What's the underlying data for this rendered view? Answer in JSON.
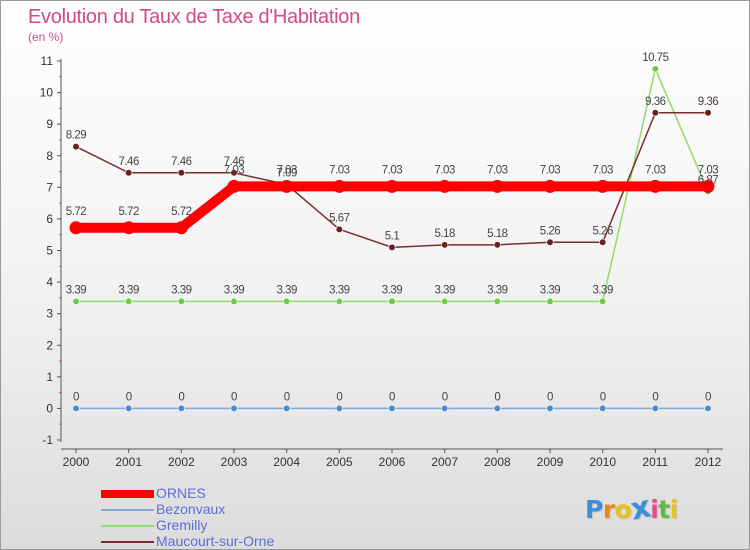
{
  "title": "Evolution du Taux de Taxe d'Habitation",
  "subtitle": "(en %)",
  "logo": {
    "letters": [
      "P",
      "r",
      "o",
      "x",
      "i",
      "t",
      "i"
    ],
    "colors": [
      "#3a8fd8",
      "#e8881c",
      "#e8c21c",
      "#3a8fd8",
      "#e84c8f",
      "#63b845",
      "#e8c21c"
    ]
  },
  "chart_data": {
    "type": "line",
    "title": "Evolution du Taux de Taxe d'Habitation",
    "ylabel": "(en %)",
    "xlabel": "",
    "x": [
      "2000",
      "2001",
      "2002",
      "2003",
      "2004",
      "2005",
      "2006",
      "2007",
      "2008",
      "2009",
      "2010",
      "2011",
      "2012"
    ],
    "ylim": [
      -1,
      11
    ],
    "yticks": [
      "-1",
      "0",
      "1",
      "2",
      "3",
      "4",
      "5",
      "6",
      "7",
      "8",
      "9",
      "10",
      "11"
    ],
    "grid": false,
    "legend_position": "bottom-left",
    "series": [
      {
        "name": "ORNES",
        "color": "#ff0000",
        "dot_color": "#ff0000",
        "thick": true,
        "values": [
          5.72,
          5.72,
          5.72,
          7.03,
          7.03,
          7.03,
          7.03,
          7.03,
          7.03,
          7.03,
          7.03,
          7.03,
          7.03
        ],
        "labels": [
          "5.72",
          "5.72",
          "5.72",
          "7.03",
          "7.03",
          "7.03",
          "7.03",
          "7.03",
          "7.03",
          "7.03",
          "7.03",
          "7.03",
          "7.03"
        ]
      },
      {
        "name": "Bezonvaux",
        "color": "#7eaad6",
        "dot_color": "#4a8cc9",
        "thick": false,
        "values": [
          0,
          0,
          0,
          0,
          0,
          0,
          0,
          0,
          0,
          0,
          0,
          0,
          0
        ],
        "labels": [
          "0",
          "0",
          "0",
          "0",
          "0",
          "0",
          "0",
          "0",
          "0",
          "0",
          "0",
          "0",
          "0"
        ]
      },
      {
        "name": "Gremilly",
        "color": "#8fdc6a",
        "dot_color": "#72c94a",
        "thick": false,
        "values": [
          3.39,
          3.39,
          3.39,
          3.39,
          3.39,
          3.39,
          3.39,
          3.39,
          3.39,
          3.39,
          3.39,
          10.75,
          6.87
        ],
        "labels": [
          "3.39",
          "3.39",
          "3.39",
          "3.39",
          "3.39",
          "3.39",
          "3.39",
          "3.39",
          "3.39",
          "3.39",
          "3.39",
          "10.75",
          "6.87"
        ]
      },
      {
        "name": "Maucourt-sur-Orne",
        "color": "#7a2e2e",
        "dot_color": "#6b1f1f",
        "thick": false,
        "values": [
          8.29,
          7.46,
          7.46,
          7.46,
          7.09,
          5.67,
          5.1,
          5.18,
          5.18,
          5.26,
          5.26,
          9.36,
          9.36
        ],
        "labels": [
          "8.29",
          "7.46",
          "7.46",
          "7.46",
          "7.09",
          "5.67",
          "5.1",
          "5.18",
          "5.18",
          "5.26",
          "5.26",
          "9.36",
          "9.36"
        ]
      }
    ]
  }
}
